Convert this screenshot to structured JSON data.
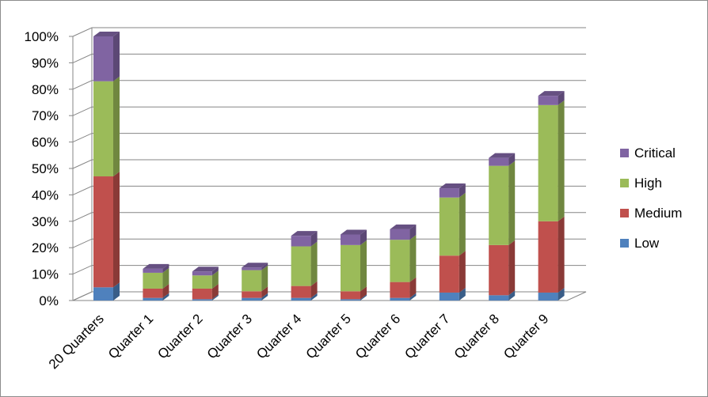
{
  "chart_data": {
    "type": "bar",
    "stacked": true,
    "style": "3d-stacked-column",
    "categories": [
      "20 Quarters",
      "Quarter 1",
      "Quarter 2",
      "Quarter 3",
      "Quarter 4",
      "Quarter 5",
      "Quarter 6",
      "Quarter 7",
      "Quarter 8",
      "Quarter 9"
    ],
    "series": [
      {
        "name": "Low",
        "color": "#4F81BD",
        "values": [
          5,
          1,
          0.5,
          1,
          1,
          0.5,
          1,
          3,
          2,
          3
        ]
      },
      {
        "name": "Medium",
        "color": "#C0504D",
        "values": [
          42,
          3.5,
          4,
          2.5,
          4.5,
          3,
          6,
          14,
          19,
          27
        ]
      },
      {
        "name": "High",
        "color": "#9BBB59",
        "values": [
          36,
          6,
          5,
          8,
          15,
          17.5,
          16,
          22,
          30,
          44
        ]
      },
      {
        "name": "Critical",
        "color": "#8064A2",
        "values": [
          17,
          1.5,
          1.5,
          1,
          4,
          4,
          4,
          3.5,
          3,
          3.5
        ]
      }
    ],
    "title": "",
    "xlabel": "",
    "ylabel": "",
    "ylim": [
      0,
      100
    ],
    "yticks": [
      "0%",
      "10%",
      "20%",
      "30%",
      "40%",
      "50%",
      "60%",
      "70%",
      "80%",
      "90%",
      "100%"
    ],
    "legend_order": [
      "Critical",
      "High",
      "Medium",
      "Low"
    ],
    "legend": "right",
    "grid": true
  }
}
